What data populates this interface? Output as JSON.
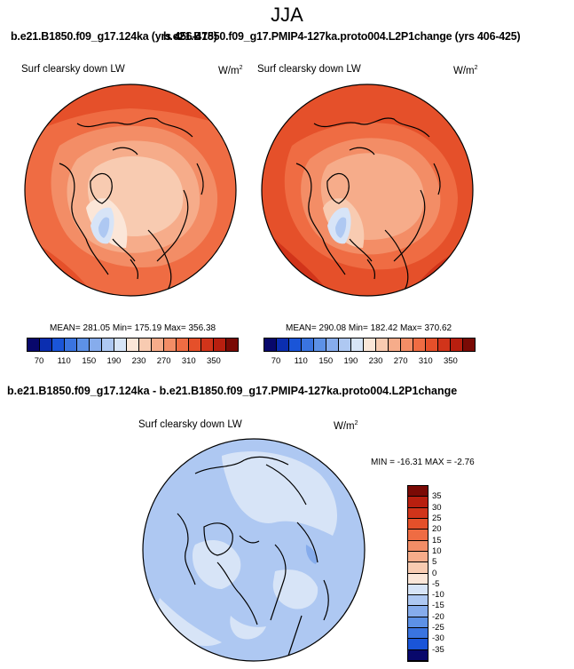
{
  "season": "JJA",
  "top_left": {
    "title": "b.e21.B1850.f09_g17.124ka (yrs 456-475)",
    "variable": "Surf clearsky down LW",
    "units": "W/m",
    "units_exp": "2",
    "stats": "MEAN= 281.05  Min= 175.19  Max= 356.38"
  },
  "top_right": {
    "title": "b.e21.B1850.f09_g17.PMIP4-127ka.proto004.L2P1change (yrs 406-425)",
    "variable": "Surf clearsky down LW",
    "units": "W/m",
    "units_exp": "2",
    "stats": "MEAN= 290.08  Min= 182.42  Max= 370.62"
  },
  "diff": {
    "title": "b.e21.B1850.f09_g17.124ka - b.e21.B1850.f09_g17.PMIP4-127ka.proto004.L2P1change",
    "variable": "Surf clearsky down LW",
    "units": "W/m",
    "units_exp": "2",
    "stats": "MIN = -16.31  MAX =  -2.76"
  },
  "abs_colorbar": {
    "labels": [
      "70",
      "110",
      "150",
      "190",
      "230",
      "270",
      "310",
      "350"
    ],
    "colors": [
      "#08086b",
      "#0b2eb0",
      "#1a55d8",
      "#3a74e0",
      "#5d91e6",
      "#86acec",
      "#aec8f2",
      "#d7e4f7",
      "#fbe6d8",
      "#f8cbb1",
      "#f6ac8a",
      "#f38d66",
      "#ef6c43",
      "#e5502a",
      "#d1341a",
      "#b81f0f",
      "#7a0a05"
    ]
  },
  "diff_colorbar": {
    "labels": [
      "35",
      "30",
      "25",
      "20",
      "15",
      "10",
      "5",
      "0",
      "-5",
      "-10",
      "-15",
      "-20",
      "-25",
      "-30",
      "-35"
    ],
    "colors": [
      "#7a0a05",
      "#b81f0f",
      "#d1341a",
      "#e5502a",
      "#ef6c43",
      "#f38d66",
      "#f6ac8a",
      "#f8cbb1",
      "#fbe6d8",
      "#d7e4f7",
      "#aec8f2",
      "#86acec",
      "#5d91e6",
      "#3a74e0",
      "#1a55d8",
      "#08086b"
    ]
  },
  "map_colors": {
    "ocean_warm": "#ef6c43",
    "deep_warm": "#d1341a",
    "mid_warm": "#f38d66",
    "light_warm": "#f6ac8a",
    "pale_warm": "#fbe6d8",
    "cold_blue": "#aec8f2",
    "diff_base": "#aec8f2",
    "diff_light": "#d7e4f7",
    "diff_dark": "#86acec"
  }
}
